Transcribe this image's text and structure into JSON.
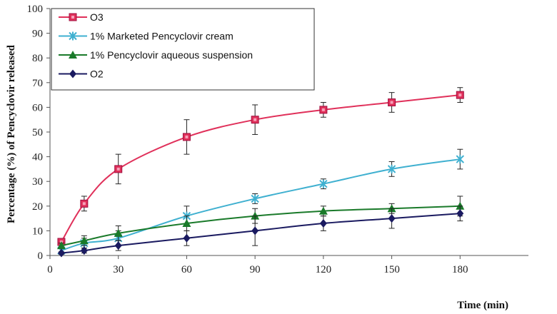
{
  "chart_data": {
    "type": "line",
    "xlabel": "Time (min)",
    "ylabel": "Percentage (%) of Pencyclovir released",
    "xlim": [
      0,
      210
    ],
    "ylim": [
      0,
      100
    ],
    "xticks": [
      0,
      30,
      60,
      90,
      120,
      150,
      180
    ],
    "yticks": [
      0,
      10,
      20,
      30,
      40,
      50,
      60,
      70,
      80,
      90,
      100
    ],
    "grid": false,
    "legend_position": "top-left",
    "x": [
      5,
      15,
      30,
      60,
      90,
      120,
      150,
      180
    ],
    "series": [
      {
        "name": "O3",
        "color": "#e0305a",
        "marker": "square",
        "values": [
          5.5,
          21,
          35,
          48,
          55,
          59,
          62,
          65
        ],
        "errors": [
          1,
          3,
          6,
          7,
          6,
          3,
          4,
          3
        ]
      },
      {
        "name": "1% Marketed Pencyclovir cream",
        "color": "#3fb0d0",
        "marker": "star",
        "values": [
          2,
          5,
          7,
          16,
          23,
          29,
          35,
          39
        ],
        "errors": [
          1,
          2,
          3,
          4,
          2,
          2,
          3,
          4
        ]
      },
      {
        "name": "1% Pencyclovir aqueous suspension",
        "color": "#1a7a2a",
        "marker": "triangle",
        "values": [
          4,
          6,
          9,
          13,
          16,
          18,
          19,
          20
        ],
        "errors": [
          1,
          2,
          3,
          3,
          3,
          2,
          2,
          4
        ]
      },
      {
        "name": "O2",
        "color": "#1a1a60",
        "marker": "diamond",
        "values": [
          1,
          2,
          4,
          7,
          10,
          13,
          15,
          17
        ],
        "errors": [
          0.5,
          1,
          2,
          3,
          6,
          3,
          4,
          3
        ]
      }
    ]
  }
}
